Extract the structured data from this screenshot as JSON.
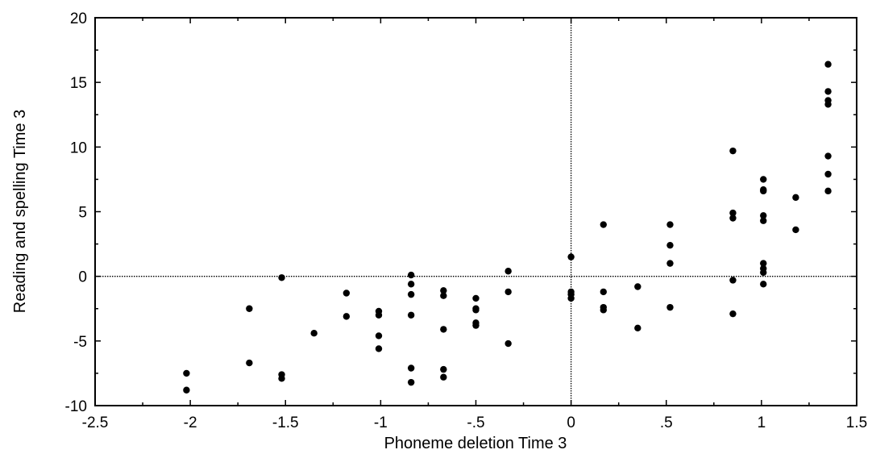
{
  "chart_data": {
    "type": "scatter",
    "title": "",
    "xlabel": "Phoneme deletion Time 3",
    "ylabel": "Reading and spelling Time 3",
    "xlim": [
      -2.5,
      1.5
    ],
    "ylim": [
      -10,
      20
    ],
    "x_ticks": [
      -2.5,
      -2,
      -1.5,
      -1,
      -0.5,
      0,
      0.5,
      1,
      1.5
    ],
    "x_tick_labels": [
      "-2.5",
      "-2",
      "-1.5",
      "-1",
      "-.5",
      "0",
      ".5",
      "1",
      "1.5"
    ],
    "y_ticks": [
      -10,
      -5,
      0,
      5,
      10,
      15,
      20
    ],
    "y_tick_labels": [
      "-10",
      "-5",
      "0",
      "5",
      "10",
      "15",
      "20"
    ],
    "reference_lines": {
      "x": 0,
      "y": 0,
      "style": "dotted"
    },
    "grid": false,
    "legend": "none",
    "marker_color": "#000000",
    "series": [
      {
        "points": [
          [
            -2.02,
            -7.5
          ],
          [
            -2.02,
            -8.8
          ],
          [
            -1.69,
            -2.5
          ],
          [
            -1.69,
            -6.7
          ],
          [
            -1.52,
            -0.1
          ],
          [
            -1.52,
            -7.6
          ],
          [
            -1.52,
            -7.9
          ],
          [
            -1.35,
            -4.4
          ],
          [
            -1.18,
            -1.3
          ],
          [
            -1.18,
            -3.1
          ],
          [
            -1.01,
            -2.7
          ],
          [
            -1.01,
            -3.0
          ],
          [
            -1.01,
            -4.6
          ],
          [
            -1.01,
            -5.6
          ],
          [
            -0.84,
            0.1
          ],
          [
            -0.84,
            -0.6
          ],
          [
            -0.84,
            -1.4
          ],
          [
            -0.84,
            -3.0
          ],
          [
            -0.84,
            -7.1
          ],
          [
            -0.84,
            -8.2
          ],
          [
            -0.67,
            -1.1
          ],
          [
            -0.67,
            -1.5
          ],
          [
            -0.67,
            -4.1
          ],
          [
            -0.67,
            -7.2
          ],
          [
            -0.67,
            -7.8
          ],
          [
            -0.5,
            -1.7
          ],
          [
            -0.5,
            -2.5
          ],
          [
            -0.5,
            -2.6
          ],
          [
            -0.5,
            -3.6
          ],
          [
            -0.5,
            -3.8
          ],
          [
            -0.33,
            0.4
          ],
          [
            -0.33,
            -1.2
          ],
          [
            -0.33,
            -5.2
          ],
          [
            0.0,
            1.5
          ],
          [
            0.0,
            -1.2
          ],
          [
            0.0,
            -1.4
          ],
          [
            0.0,
            -1.7
          ],
          [
            0.17,
            4.0
          ],
          [
            0.17,
            -1.2
          ],
          [
            0.17,
            -2.4
          ],
          [
            0.17,
            -2.6
          ],
          [
            0.35,
            -0.8
          ],
          [
            0.35,
            -4.0
          ],
          [
            0.52,
            4.0
          ],
          [
            0.52,
            2.4
          ],
          [
            0.52,
            1.0
          ],
          [
            0.52,
            -2.4
          ],
          [
            0.85,
            9.7
          ],
          [
            0.85,
            4.9
          ],
          [
            0.85,
            4.5
          ],
          [
            0.85,
            -0.3
          ],
          [
            0.85,
            -2.9
          ],
          [
            1.01,
            7.5
          ],
          [
            1.01,
            6.7
          ],
          [
            1.01,
            6.6
          ],
          [
            1.01,
            4.7
          ],
          [
            1.01,
            4.3
          ],
          [
            1.01,
            1.0
          ],
          [
            1.01,
            0.6
          ],
          [
            1.01,
            0.3
          ],
          [
            1.01,
            -0.6
          ],
          [
            1.18,
            6.1
          ],
          [
            1.18,
            3.6
          ],
          [
            1.35,
            16.4
          ],
          [
            1.35,
            14.3
          ],
          [
            1.35,
            13.6
          ],
          [
            1.35,
            13.3
          ],
          [
            1.35,
            9.3
          ],
          [
            1.35,
            7.9
          ],
          [
            1.35,
            6.6
          ]
        ]
      }
    ]
  }
}
